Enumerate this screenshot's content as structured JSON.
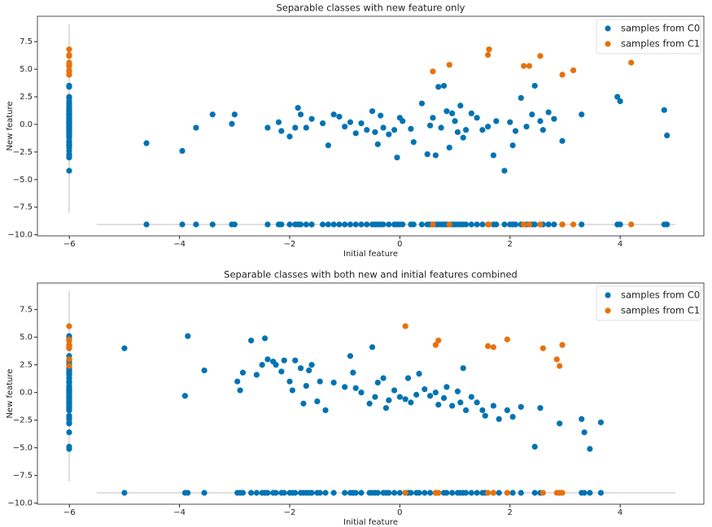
{
  "chart_data": [
    {
      "type": "scatter",
      "title": "Separable classes with new feature only",
      "x_label": "Initial feature",
      "y_label": "New feature",
      "xlim": [
        -6.58,
        5.52
      ],
      "ylim": [
        -10.1,
        9.8
      ],
      "xticks": [
        {
          "value": -6,
          "label": "−6"
        },
        {
          "value": -4,
          "label": "−4"
        },
        {
          "value": -2,
          "label": "−2"
        },
        0,
        2,
        4
      ],
      "yticks": [
        {
          "value": -10,
          "label": "−10.0"
        },
        {
          "value": -7.5,
          "label": "−7.5"
        },
        {
          "value": -5,
          "label": "−5.0"
        },
        {
          "value": -2.5,
          "label": "−2.5"
        },
        {
          "value": 0,
          "label": "0.0"
        },
        2.5,
        {
          "value": 5,
          "label": "5.0"
        },
        7.5
      ],
      "legend": "upper right",
      "series": [
        {
          "name": "samples from C0",
          "color": "#0173b2",
          "x": [
            -4.6,
            -3.95,
            -3.7,
            -3.4,
            -3.05,
            -3.0,
            -2.4,
            -2.2,
            -2.15,
            -2.0,
            -1.9,
            -1.85,
            -1.8,
            -1.7,
            -1.6,
            -1.4,
            -1.3,
            -1.2,
            -1.1,
            -1.0,
            -0.9,
            -0.8,
            -0.7,
            -0.6,
            -0.5,
            -0.45,
            -0.4,
            -0.35,
            -0.3,
            -0.2,
            -0.1,
            -0.05,
            0.0,
            0.05,
            0.2,
            0.25,
            0.4,
            0.5,
            0.55,
            0.6,
            0.65,
            0.7,
            0.75,
            0.8,
            0.85,
            0.9,
            0.95,
            1.0,
            1.05,
            1.1,
            1.15,
            1.2,
            1.3,
            1.4,
            1.5,
            1.6,
            1.7,
            1.75,
            1.9,
            2.0,
            2.05,
            2.1,
            2.2,
            2.3,
            2.4,
            2.45,
            2.55,
            2.6,
            2.7,
            2.8,
            2.95,
            3.3,
            3.95,
            4.0,
            4.8,
            4.85
          ],
          "values": [
            -1.7,
            -2.4,
            -0.3,
            0.9,
            0.05,
            0.9,
            -0.3,
            0.2,
            -0.6,
            -1.1,
            -0.3,
            1.5,
            0.9,
            -0.3,
            0.5,
            0.1,
            -1.9,
            0.9,
            0.7,
            -0.2,
            0.2,
            -0.8,
            0.1,
            -0.5,
            1.2,
            -0.7,
            -1.8,
            0.8,
            -0.3,
            -0.9,
            -0.5,
            -3.0,
            0.6,
            0.3,
            -0.4,
            -1.6,
            1.9,
            -2.7,
            -0.1,
            0.6,
            -2.8,
            3.4,
            -0.3,
            3.5,
            1.2,
            -2.1,
            1.0,
            0.3,
            -0.7,
            1.7,
            -1.2,
            -0.5,
            1.0,
            0.6,
            -0.5,
            -0.2,
            -2.8,
            0.3,
            -4.2,
            0.2,
            -1.9,
            -0.6,
            2.4,
            -0.2,
            0.9,
            3.5,
            0.3,
            -0.5,
            1.1,
            0.5,
            -1.5,
            0.9,
            2.5,
            2.1,
            1.3,
            -1.0
          ]
        },
        {
          "name": "samples from C1",
          "color": "#e8710a",
          "x": [
            0.6,
            0.9,
            1.6,
            1.62,
            2.25,
            2.35,
            2.55,
            2.95,
            3.15,
            4.2
          ],
          "values": [
            4.8,
            5.4,
            6.3,
            6.8,
            5.3,
            5.3,
            6.2,
            4.5,
            4.9,
            5.6
          ]
        }
      ]
    },
    {
      "type": "scatter",
      "title": "Separable classes with both new and initial features combined",
      "x_label": "Initial feature",
      "y_label": "New feature",
      "xlim": [
        -6.58,
        5.52
      ],
      "ylim": [
        -10.1,
        9.9
      ],
      "xticks": [
        {
          "value": -6,
          "label": "−6"
        },
        {
          "value": -4,
          "label": "−4"
        },
        {
          "value": -2,
          "label": "−2"
        },
        0,
        2,
        4
      ],
      "yticks": [
        {
          "value": -10,
          "label": "−10.0"
        },
        {
          "value": -7.5,
          "label": "−7.5"
        },
        {
          "value": -5,
          "label": "−5.0"
        },
        {
          "value": -2.5,
          "label": "−2.5"
        },
        {
          "value": 0,
          "label": "0.0"
        },
        2.5,
        {
          "value": 5,
          "label": "5.0"
        },
        7.5
      ],
      "legend": "upper right",
      "series": [
        {
          "name": "samples from C0",
          "color": "#0173b2",
          "x": [
            -5.0,
            -3.9,
            -3.85,
            -3.55,
            -2.95,
            -2.9,
            -2.85,
            -2.7,
            -2.6,
            -2.5,
            -2.45,
            -2.4,
            -2.3,
            -2.25,
            -2.15,
            -2.1,
            -2.0,
            -1.95,
            -1.9,
            -1.8,
            -1.75,
            -1.7,
            -1.65,
            -1.6,
            -1.5,
            -1.45,
            -1.35,
            -1.2,
            -1.0,
            -0.9,
            -0.85,
            -0.8,
            -0.7,
            -0.55,
            -0.5,
            -0.45,
            -0.4,
            -0.3,
            -0.25,
            -0.2,
            -0.1,
            0.0,
            0.1,
            0.15,
            0.2,
            0.3,
            0.35,
            0.45,
            0.55,
            0.65,
            0.7,
            0.8,
            0.85,
            0.95,
            1.05,
            1.1,
            1.15,
            1.2,
            1.3,
            1.4,
            1.5,
            1.55,
            1.7,
            1.8,
            1.95,
            2.05,
            2.2,
            2.45,
            2.55,
            2.9,
            3.3,
            3.35,
            3.45,
            3.65
          ],
          "values": [
            4.0,
            -0.3,
            5.1,
            2.0,
            1.0,
            0.2,
            1.8,
            4.7,
            1.6,
            2.5,
            4.9,
            3.0,
            2.8,
            2.5,
            1.9,
            2.9,
            1.0,
            0.2,
            2.9,
            2.2,
            -1.0,
            0.6,
            2.0,
            2.5,
            -0.8,
            1.0,
            -1.6,
            0.9,
            0.5,
            3.3,
            1.8,
            0.4,
            0.0,
            -1.0,
            4.1,
            -0.4,
            0.9,
            1.3,
            -1.4,
            -0.7,
            0.2,
            -0.4,
            -0.6,
            1.3,
            -0.9,
            -0.2,
            1.7,
            0.3,
            -0.3,
            0.0,
            -1.1,
            -0.5,
            0.5,
            -1.2,
            0.1,
            -0.9,
            2.2,
            -1.6,
            -0.4,
            -0.9,
            -1.6,
            -2.1,
            -1.2,
            -2.4,
            -1.6,
            -2.2,
            -1.3,
            -4.9,
            -1.4,
            -2.8,
            -2.4,
            -3.6,
            -5.1,
            -2.7
          ]
        },
        {
          "name": "samples from C1",
          "color": "#e8710a",
          "x": [
            0.1,
            0.65,
            0.7,
            1.6,
            1.7,
            1.95,
            2.6,
            2.85,
            2.9,
            2.95
          ],
          "values": [
            6.0,
            4.3,
            4.7,
            4.2,
            4.1,
            4.8,
            4.0,
            3.0,
            2.4,
            4.3
          ]
        }
      ]
    }
  ]
}
